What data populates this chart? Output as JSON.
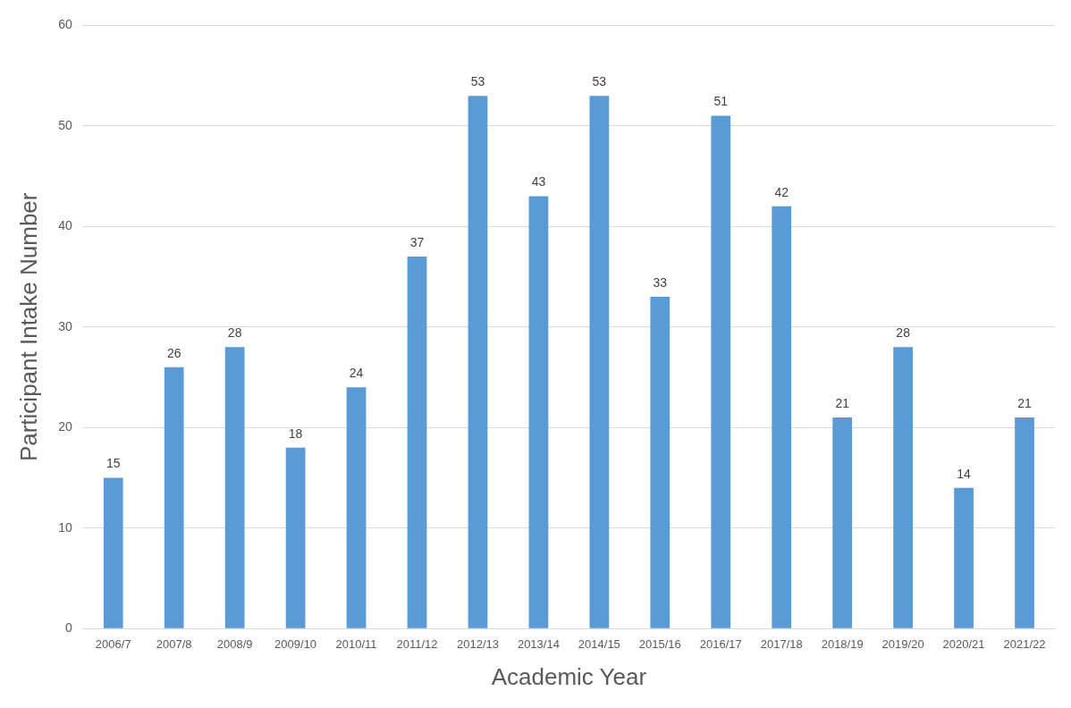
{
  "chart_data": {
    "type": "bar",
    "xlabel": "Academic Year",
    "ylabel": "Participant Intake Number",
    "categories": [
      "2006/7",
      "2007/8",
      "2008/9",
      "2009/10",
      "2010/11",
      "2011/12",
      "2012/13",
      "2013/14",
      "2014/15",
      "2015/16",
      "2016/17",
      "2017/18",
      "2018/19",
      "2019/20",
      "2020/21",
      "2021/22"
    ],
    "values": [
      15,
      26,
      28,
      18,
      24,
      37,
      53,
      43,
      53,
      33,
      51,
      42,
      21,
      28,
      14,
      21
    ],
    "color": "#5b9bd5",
    "ylim": [
      0,
      60
    ],
    "yticks": [
      0,
      10,
      20,
      30,
      40,
      50,
      60
    ],
    "grid": "y",
    "data_labels": true,
    "legend": false
  }
}
